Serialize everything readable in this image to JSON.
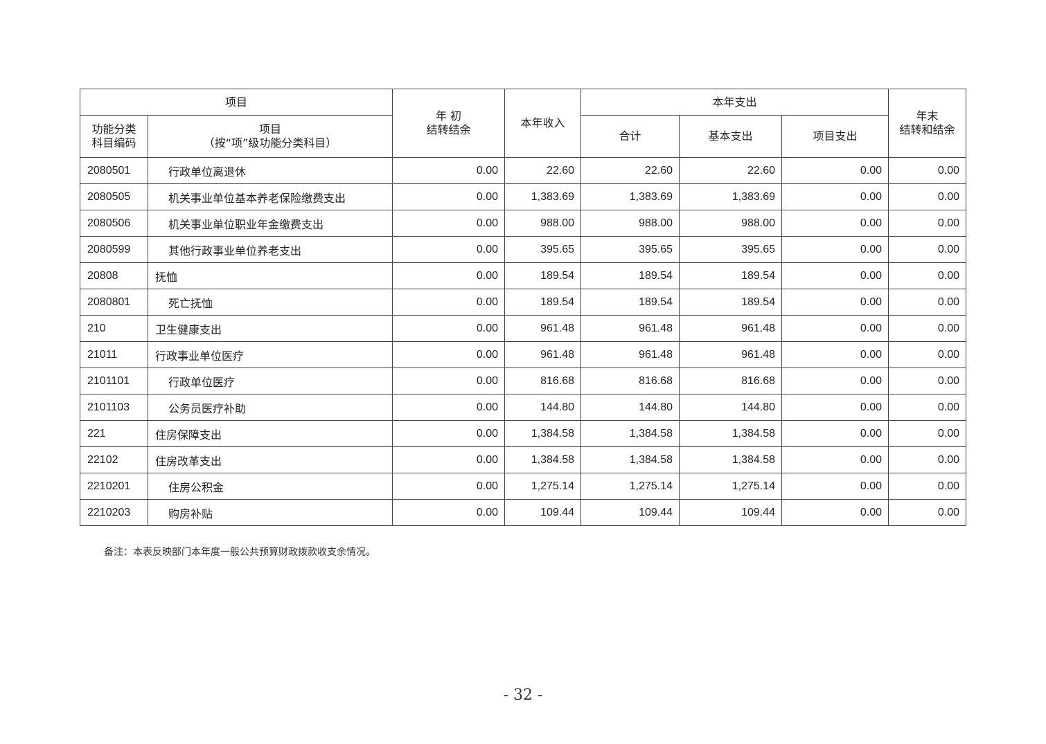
{
  "header": {
    "item_group": "项目",
    "code": "功能分类\n科目编码",
    "item": "项目",
    "item_sub": "（按“项”级功能分类科目）",
    "opening": "年 初\n结转结余",
    "income": "本年收入",
    "expense_group": "本年支出",
    "total": "合计",
    "basic": "基本支出",
    "project": "项目支出",
    "closing": "年末\n结转和结余"
  },
  "rows": [
    {
      "code": "2080501",
      "name": "行政单位离退休",
      "indent": true,
      "opening": "0.00",
      "income": "22.60",
      "total": "22.60",
      "basic": "22.60",
      "project": "0.00",
      "closing": "0.00"
    },
    {
      "code": "2080505",
      "name": "机关事业单位基本养老保险缴费支出",
      "indent": true,
      "opening": "0.00",
      "income": "1,383.69",
      "total": "1,383.69",
      "basic": "1,383.69",
      "project": "0.00",
      "closing": "0.00"
    },
    {
      "code": "2080506",
      "name": "机关事业单位职业年金缴费支出",
      "indent": true,
      "opening": "0.00",
      "income": "988.00",
      "total": "988.00",
      "basic": "988.00",
      "project": "0.00",
      "closing": "0.00"
    },
    {
      "code": "2080599",
      "name": "其他行政事业单位养老支出",
      "indent": true,
      "opening": "0.00",
      "income": "395.65",
      "total": "395.65",
      "basic": "395.65",
      "project": "0.00",
      "closing": "0.00"
    },
    {
      "code": "20808",
      "name": "抚恤",
      "indent": false,
      "opening": "0.00",
      "income": "189.54",
      "total": "189.54",
      "basic": "189.54",
      "project": "0.00",
      "closing": "0.00"
    },
    {
      "code": "2080801",
      "name": "死亡抚恤",
      "indent": true,
      "opening": "0.00",
      "income": "189.54",
      "total": "189.54",
      "basic": "189.54",
      "project": "0.00",
      "closing": "0.00"
    },
    {
      "code": "210",
      "name": "卫生健康支出",
      "indent": false,
      "opening": "0.00",
      "income": "961.48",
      "total": "961.48",
      "basic": "961.48",
      "project": "0.00",
      "closing": "0.00"
    },
    {
      "code": "21011",
      "name": "行政事业单位医疗",
      "indent": false,
      "opening": "0.00",
      "income": "961.48",
      "total": "961.48",
      "basic": "961.48",
      "project": "0.00",
      "closing": "0.00"
    },
    {
      "code": "2101101",
      "name": "行政单位医疗",
      "indent": true,
      "opening": "0.00",
      "income": "816.68",
      "total": "816.68",
      "basic": "816.68",
      "project": "0.00",
      "closing": "0.00"
    },
    {
      "code": "2101103",
      "name": "公务员医疗补助",
      "indent": true,
      "opening": "0.00",
      "income": "144.80",
      "total": "144.80",
      "basic": "144.80",
      "project": "0.00",
      "closing": "0.00"
    },
    {
      "code": "221",
      "name": "住房保障支出",
      "indent": false,
      "opening": "0.00",
      "income": "1,384.58",
      "total": "1,384.58",
      "basic": "1,384.58",
      "project": "0.00",
      "closing": "0.00"
    },
    {
      "code": "22102",
      "name": "住房改革支出",
      "indent": false,
      "opening": "0.00",
      "income": "1,384.58",
      "total": "1,384.58",
      "basic": "1,384.58",
      "project": "0.00",
      "closing": "0.00"
    },
    {
      "code": "2210201",
      "name": "住房公积金",
      "indent": true,
      "opening": "0.00",
      "income": "1,275.14",
      "total": "1,275.14",
      "basic": "1,275.14",
      "project": "0.00",
      "closing": "0.00"
    },
    {
      "code": "2210203",
      "name": "购房补贴",
      "indent": true,
      "opening": "0.00",
      "income": "109.44",
      "total": "109.44",
      "basic": "109.44",
      "project": "0.00",
      "closing": "0.00"
    }
  ],
  "note": "备注：本表反映部门本年度一般公共预算财政拨款收支余情况。",
  "page_number": "- 32 -"
}
